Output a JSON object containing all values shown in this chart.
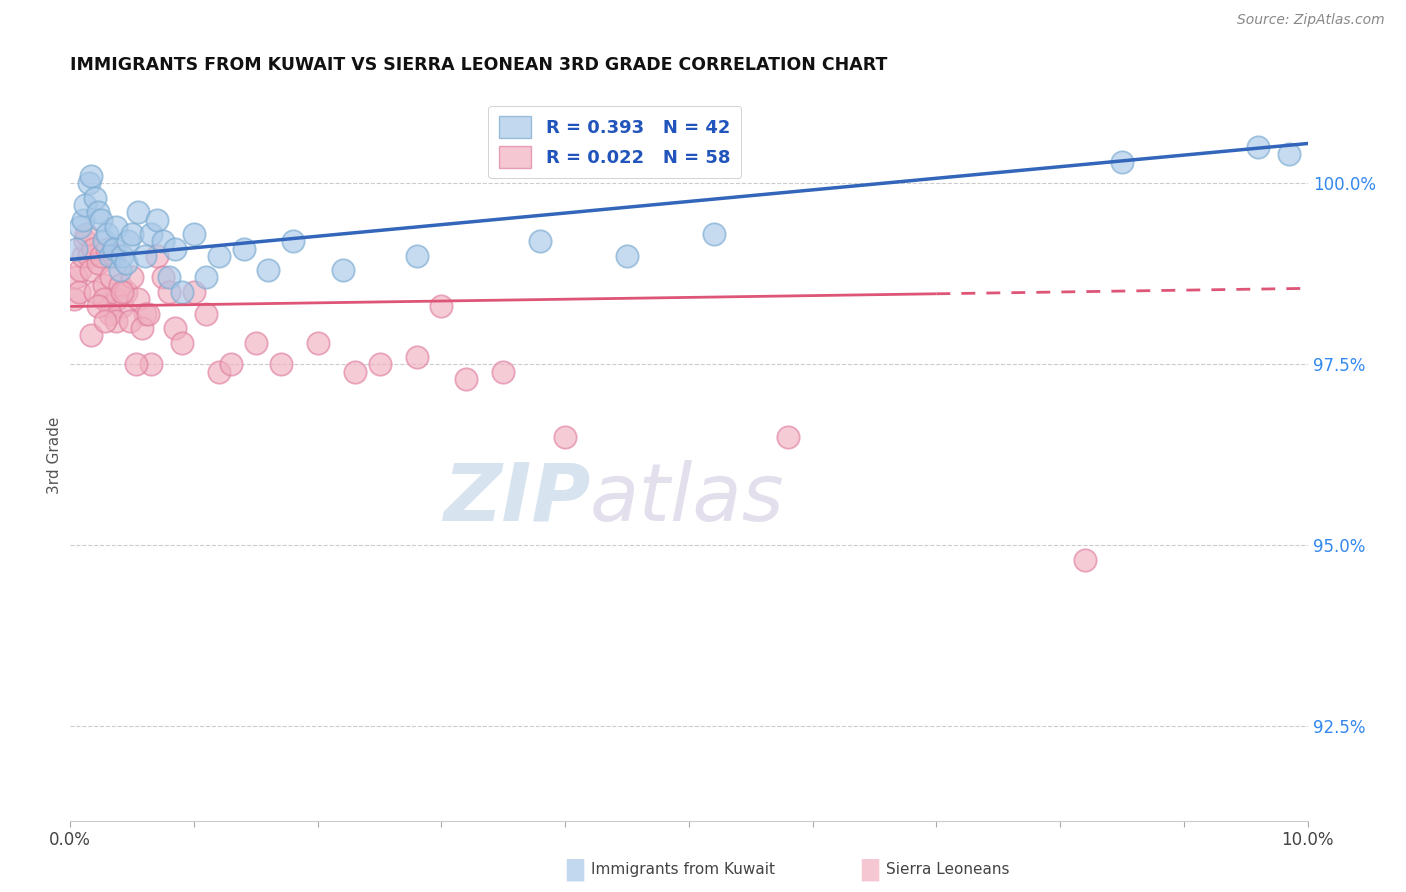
{
  "title": "IMMIGRANTS FROM KUWAIT VS SIERRA LEONEAN 3RD GRADE CORRELATION CHART",
  "source": "Source: ZipAtlas.com",
  "ylabel": "3rd Grade",
  "ytick_labels": [
    "92.5%",
    "95.0%",
    "97.5%",
    "100.0%"
  ],
  "ytick_values": [
    92.5,
    95.0,
    97.5,
    100.0
  ],
  "xmin": 0.0,
  "xmax": 10.0,
  "ymin": 91.2,
  "ymax": 101.3,
  "legend_label1": "Immigrants from Kuwait",
  "legend_label2": "Sierra Leoneans",
  "blue_color": "#A8C8E8",
  "blue_edge_color": "#7AAAD0",
  "pink_color": "#F0B0C0",
  "pink_edge_color": "#E080A0",
  "blue_line_color": "#3366BB",
  "pink_line_color": "#DD5577",
  "blue_line_y0": 98.95,
  "blue_line_y1": 100.55,
  "pink_line_y0": 98.3,
  "pink_line_y1": 98.55,
  "pink_dash_start": 7.0,
  "blue_x": [
    0.05,
    0.08,
    0.1,
    0.12,
    0.15,
    0.17,
    0.2,
    0.22,
    0.25,
    0.27,
    0.3,
    0.32,
    0.35,
    0.37,
    0.4,
    0.42,
    0.45,
    0.47,
    0.5,
    0.55,
    0.6,
    0.65,
    0.7,
    0.75,
    0.8,
    0.85,
    0.9,
    1.0,
    1.1,
    1.2,
    1.4,
    1.6,
    1.8,
    2.2,
    2.8,
    3.8,
    4.5,
    5.2,
    8.5,
    9.6,
    9.85
  ],
  "blue_y": [
    99.1,
    99.4,
    99.5,
    99.7,
    100.0,
    100.1,
    99.8,
    99.6,
    99.5,
    99.2,
    99.3,
    99.0,
    99.1,
    99.4,
    98.8,
    99.0,
    98.9,
    99.2,
    99.3,
    99.6,
    99.0,
    99.3,
    99.5,
    99.2,
    98.7,
    99.1,
    98.5,
    99.3,
    98.7,
    99.0,
    99.1,
    98.8,
    99.2,
    98.8,
    99.0,
    99.2,
    99.0,
    99.3,
    100.3,
    100.5,
    100.4
  ],
  "pink_x": [
    0.03,
    0.05,
    0.07,
    0.08,
    0.1,
    0.12,
    0.13,
    0.15,
    0.17,
    0.18,
    0.2,
    0.22,
    0.25,
    0.27,
    0.3,
    0.32,
    0.33,
    0.35,
    0.38,
    0.4,
    0.42,
    0.45,
    0.5,
    0.55,
    0.6,
    0.65,
    0.7,
    0.75,
    0.8,
    0.85,
    0.9,
    1.0,
    1.1,
    1.2,
    1.3,
    1.5,
    1.7,
    2.0,
    2.5,
    3.0,
    3.5,
    4.0,
    5.8,
    8.2,
    2.3,
    2.8,
    3.2,
    0.27,
    0.32,
    0.37,
    0.42,
    0.48,
    0.53,
    0.58,
    0.63,
    0.17,
    0.22,
    0.28
  ],
  "pink_y": [
    98.4,
    98.7,
    98.5,
    98.8,
    99.0,
    99.2,
    99.3,
    99.0,
    98.8,
    99.1,
    98.5,
    98.9,
    99.0,
    98.6,
    99.1,
    98.3,
    98.7,
    99.0,
    98.4,
    98.6,
    98.3,
    98.5,
    98.7,
    98.4,
    98.2,
    97.5,
    99.0,
    98.7,
    98.5,
    98.0,
    97.8,
    98.5,
    98.2,
    97.4,
    97.5,
    97.8,
    97.5,
    97.8,
    97.5,
    98.3,
    97.4,
    96.5,
    96.5,
    94.8,
    97.4,
    97.6,
    97.3,
    98.4,
    98.2,
    98.1,
    98.5,
    98.1,
    97.5,
    98.0,
    98.2,
    97.9,
    98.3,
    98.1
  ]
}
